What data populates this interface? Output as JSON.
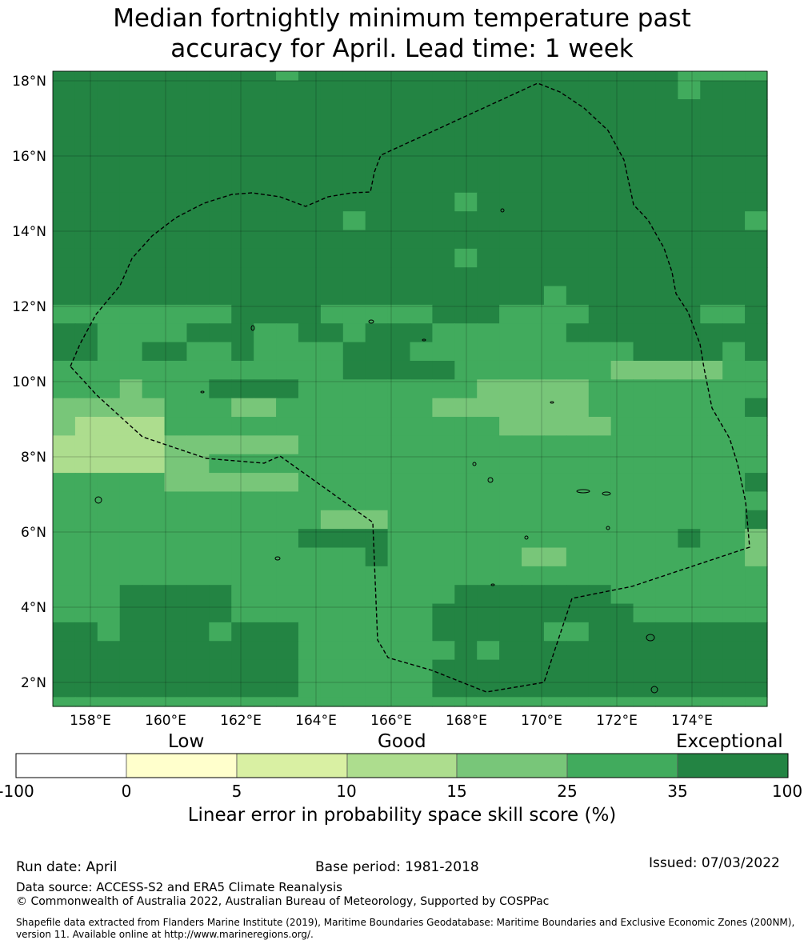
{
  "title_line1": "Median fortnightly minimum temperature past",
  "title_line2": "accuracy for April. Lead time: 1 week",
  "map": {
    "lat_ticks": [
      "18°N",
      "16°N",
      "14°N",
      "12°N",
      "10°N",
      "8°N",
      "6°N",
      "4°N",
      "2°N"
    ],
    "lon_ticks": [
      "158°E",
      "160°E",
      "162°E",
      "164°E",
      "166°E",
      "168°E",
      "170°E",
      "172°E",
      "174°E"
    ],
    "grid_rows": [
      "6666666666666666666666666666666666666666666666666666666666666666666666666666666665666666666666666666666666666666666666666666666666666666666666666666666666666666666666665555556666666666",
      "666666666666666666666666666666666666666666666666666666666666666666666666666666666666666666666666666666666666666666666666666666666666666666666666666666666666666666666666665555666666666666"
    ],
    "cells": [
      "66666666665666666666666666665555",
      "66666666666666666666666666665666",
      "66666666666666666666666666666666",
      "66666666666666666666666666666666",
      "66666666666666666666666666666666",
      "66666666666666666666666666666666",
      "66666666666666666666666666666666",
      "66666666666666666656666666666666",
      "66666666666665666666666666666665",
      "66666666666666666666666666666666",
      "66666666666666666656666666666666",
      "66666666666666666666666666666666",
      "66666666666666666666665666666666",
      "55555555666655555666555566666556",
      "66555566655665666555555666666666",
      "66556655655556665555555555666656",
      "55555555555556666655555554444455",
      "55545556666555555554444455555555",
      "44444555445555555444444455555556",
      "43333555555555555555444445555555",
      "33333444444555555555555555555555",
      "33333445555555555555555555555555",
      "55555444444555555555555555555556",
      "55555555555555555555555555555555",
      "55555555555544455555555555555556",
      "55555555555666655555555555556554",
      "55555555555555655555544555555554",
      "55555555555555555555555555555555",
      "55566666555555555566666665555555",
      "55566666555555555666666666555555",
      "66566665666555555666665566666666",
      "66666666666555555565666666666666",
      "66666666666555555666666666666666",
      "66666666666555555666666666666666",
      "55555555555555555555555555555555"
    ],
    "colors": {
      "0": "#ffffff",
      "1": "#ffffcc",
      "2": "#d9f0a3",
      "3": "#addd8e",
      "4": "#78c679",
      "5": "#41ab5d",
      "6": "#238443"
    },
    "eez_boundary": "dashed black"
  },
  "colorbar": {
    "categories": [
      "Low",
      "Good",
      "Exceptional"
    ],
    "bounds": [
      "-100",
      "0",
      "5",
      "10",
      "15",
      "25",
      "35",
      "100"
    ],
    "colors": [
      "#ffffff",
      "#ffffcc",
      "#d9f0a3",
      "#addd8e",
      "#78c679",
      "#41ab5d",
      "#238443"
    ],
    "label": "Linear error in probability space skill score (%)"
  },
  "footer": {
    "run_date": "Run date: April",
    "base_period": "Base period: 1981-2018",
    "issued": "Issued: 07/03/2022",
    "data_source": "Data source: ACCESS-S2 and ERA5 Climate Reanalysis",
    "copyright": "© Commonwealth of Australia 2022, Australian Bureau of Meteorology, Supported by COSPPac",
    "shapefile_line1": "Shapefile data extracted from Flanders Marine Institute (2019), Maritime Boundaries Geodatabase: Maritime Boundaries and Exclusive Economic Zones (200NM),",
    "shapefile_line2": "version 11. Available online at http://www.marineregions.org/."
  }
}
